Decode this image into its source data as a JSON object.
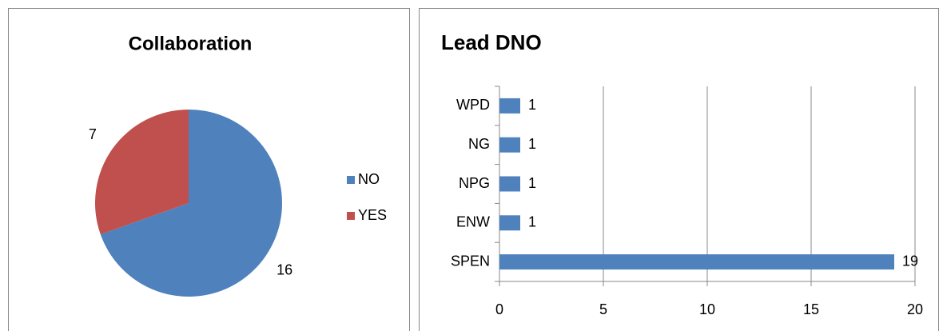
{
  "chart_data": [
    {
      "type": "pie",
      "title": "Collaboration",
      "categories": [
        "NO",
        "YES"
      ],
      "values": [
        16,
        7
      ],
      "colors": [
        "#4f81bd",
        "#c0504d"
      ],
      "legend": "right"
    },
    {
      "type": "bar",
      "orientation": "horizontal",
      "title": "Lead DNO",
      "categories": [
        "SPEN",
        "ENW",
        "NPG",
        "NG",
        "WPD"
      ],
      "values": [
        19,
        1,
        1,
        1,
        1
      ],
      "color": "#4f81bd",
      "xlim": [
        0,
        20
      ],
      "xticks": [
        0,
        5,
        10,
        15,
        20
      ],
      "grid": true
    }
  ]
}
